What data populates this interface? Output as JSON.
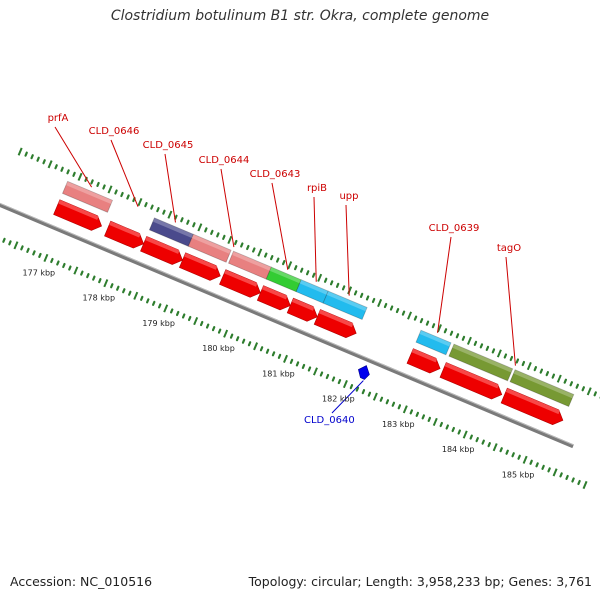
{
  "title": "Clostridium botulinum B1 str. Okra, complete genome",
  "footer": {
    "accession": "Accession: NC_010516",
    "summary": "Topology: circular; Length: 3,958,233 bp; Genes: 3,761"
  },
  "colors": {
    "backbone": "#7a7a7a",
    "tick": "#2e7d2e",
    "red_arrow": "#ee0000",
    "label_red": "#cc0000",
    "label_blue": "#0000cc",
    "pink": "#e88080",
    "navy": "#4a4a8c",
    "green": "#33cc33",
    "cyan": "#22bbee",
    "olive": "#779933"
  },
  "scale_labels": [
    "177 kbp",
    "178 kbp",
    "179 kbp",
    "180 kbp",
    "181 kbp",
    "182 kbp",
    "183 kbp",
    "184 kbp",
    "185 kbp"
  ],
  "genes": [
    {
      "name": "prfA",
      "color": "pink",
      "start": 176.85,
      "end": 177.6
    },
    {
      "name": "CLD_0646",
      "color": "none",
      "start": 177.7,
      "end": 178.3
    },
    {
      "name": "CLD_0645",
      "color": "navy",
      "start": 178.3,
      "end": 178.95
    },
    {
      "name": "CLD_0644",
      "color": "pink",
      "start": 178.95,
      "end": 180.25
    },
    {
      "name": "CLD_0643",
      "color": "green",
      "start": 180.25,
      "end": 180.75
    },
    {
      "name": "rpiB",
      "color": "cyan",
      "start": 180.75,
      "end": 181.2
    },
    {
      "name": "upp",
      "color": "cyan",
      "start": 181.2,
      "end": 181.85
    },
    {
      "name": "CLD_0639",
      "color": "cyan",
      "start": 182.75,
      "end": 183.25
    },
    {
      "name": "tagO",
      "color": "olive",
      "start": 183.3,
      "end": 185.3
    }
  ],
  "minus_strand_gene": {
    "name": "CLD_0640"
  }
}
